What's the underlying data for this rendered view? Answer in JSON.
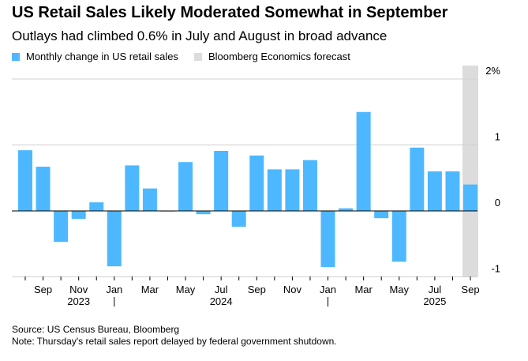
{
  "title": "US Retail Sales Likely Moderated Somewhat in September",
  "subtitle": "Outlays had climbed 0.6% in July and August in broad advance",
  "legend": {
    "actual": "Monthly change in US retail sales",
    "forecast": "Bloomberg Economics forecast"
  },
  "colors": {
    "bar": "#4db8ff",
    "forecast_band": "#dcdcdc"
  },
  "source": "Source: US Census Bureau, Bloomberg",
  "note": "Note: Thursday's retail sales report delayed by federal government shutdown.",
  "chart_data": {
    "type": "bar",
    "categories": [
      "Aug 2023",
      "Sep 2023",
      "Oct 2023",
      "Nov 2023",
      "Dec 2023",
      "Jan 2024",
      "Feb 2024",
      "Mar 2024",
      "Apr 2024",
      "May 2024",
      "Jun 2024",
      "Jul 2024",
      "Aug 2024",
      "Sep 2024",
      "Oct 2024",
      "Nov 2024",
      "Dec 2024",
      "Jan 2025",
      "Feb 2025",
      "Mar 2025",
      "Apr 2025",
      "May 2025",
      "Jun 2025",
      "Jul 2025",
      "Aug 2025",
      "Sep 2025"
    ],
    "values": [
      0.92,
      0.67,
      -0.47,
      -0.12,
      0.13,
      -0.84,
      0.69,
      0.34,
      0.0,
      0.74,
      -0.05,
      0.91,
      -0.24,
      0.84,
      0.63,
      0.63,
      0.77,
      -0.85,
      0.04,
      1.5,
      -0.11,
      -0.77,
      0.96,
      0.6,
      0.6,
      0.4
    ],
    "forecast_categories": [
      "Sep 2025"
    ],
    "ylim": [
      -1,
      2
    ],
    "yticks": [
      {
        "v": 2,
        "label": "2%"
      },
      {
        "v": 1,
        "label": "1"
      },
      {
        "v": 0,
        "label": "0"
      },
      {
        "v": -1,
        "label": "-1"
      }
    ],
    "xtick_labels": [
      {
        "i": 1,
        "label": "Sep"
      },
      {
        "i": 3,
        "label": "Nov"
      },
      {
        "i": 5,
        "label": "Jan"
      },
      {
        "i": 7,
        "label": "Mar"
      },
      {
        "i": 9,
        "label": "May"
      },
      {
        "i": 11,
        "label": "Jul"
      },
      {
        "i": 13,
        "label": "Sep"
      },
      {
        "i": 15,
        "label": "Nov"
      },
      {
        "i": 17,
        "label": "Jan"
      },
      {
        "i": 19,
        "label": "Mar"
      },
      {
        "i": 21,
        "label": "May"
      },
      {
        "i": 23,
        "label": "Jul"
      },
      {
        "i": 25,
        "label": "Sep"
      }
    ],
    "year_labels": [
      {
        "i": 3,
        "label": "2023"
      },
      {
        "i": 11,
        "label": "2024"
      },
      {
        "i": 23,
        "label": "2025"
      }
    ],
    "year_separators": [
      5,
      17
    ]
  }
}
